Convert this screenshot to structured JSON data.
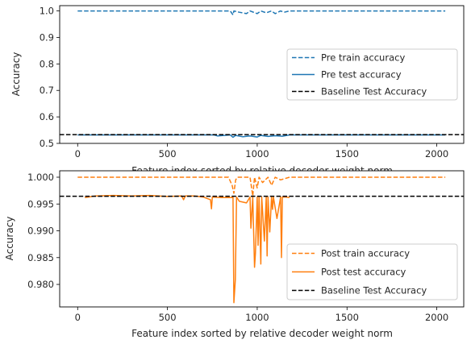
{
  "chart_data": [
    {
      "type": "line",
      "title": "",
      "xlabel": "Feature index sorted by relative decoder weight norm",
      "ylabel": "Accuracy",
      "xlim": [
        -100,
        2150
      ],
      "ylim": [
        0.5,
        1.02
      ],
      "xticks": [
        0,
        500,
        1000,
        1500,
        2000
      ],
      "yticks": [
        0.5,
        0.6,
        0.7,
        0.8,
        0.9,
        1.0
      ],
      "ytick_labels": [
        "0.5",
        "0.6",
        "0.7",
        "0.8",
        "0.9",
        "1.0"
      ],
      "grid": false,
      "legend_position": "center-right",
      "series": [
        {
          "name": "Pre train accuracy",
          "style": "dashed",
          "color": "#1f77b4",
          "x": [
            0,
            850,
            865,
            870,
            900,
            940,
            960,
            1000,
            1020,
            1050,
            1080,
            1100,
            1130,
            1150,
            1180,
            2047
          ],
          "y": [
            1.0,
            1.0,
            0.985,
            1.0,
            0.995,
            0.99,
            1.0,
            0.99,
            1.0,
            0.993,
            1.0,
            0.99,
            1.0,
            0.995,
            1.0,
            1.0
          ]
        },
        {
          "name": "Pre test accuracy",
          "style": "solid",
          "color": "#1f77b4",
          "x": [
            0,
            760,
            780,
            850,
            865,
            880,
            920,
            960,
            1000,
            1020,
            1060,
            1100,
            1140,
            1180,
            2047
          ],
          "y": [
            0.532,
            0.532,
            0.528,
            0.532,
            0.523,
            0.53,
            0.525,
            0.528,
            0.524,
            0.53,
            0.526,
            0.529,
            0.527,
            0.532,
            0.532
          ]
        },
        {
          "name": "Baseline Test Accuracy",
          "style": "dashed",
          "color": "#000000",
          "y": 0.533
        }
      ]
    },
    {
      "type": "line",
      "title": "",
      "xlabel": "Feature index sorted by relative decoder weight norm",
      "ylabel": "Accuracy",
      "xlim": [
        -100,
        2150
      ],
      "ylim": [
        0.9758,
        1.0012
      ],
      "xticks": [
        0,
        500,
        1000,
        1500,
        2000
      ],
      "yticks": [
        0.98,
        0.985,
        0.99,
        0.995,
        1.0
      ],
      "ytick_labels": [
        "0.980",
        "0.985",
        "0.990",
        "0.995",
        "1.000"
      ],
      "grid": false,
      "legend_position": "lower-right",
      "series": [
        {
          "name": "Post train accuracy",
          "style": "dashed",
          "color": "#ff7f0e",
          "x": [
            0,
            840,
            860,
            870,
            880,
            890,
            960,
            975,
            985,
            1000,
            1010,
            1030,
            1060,
            1080,
            1100,
            1130,
            1180,
            2047
          ],
          "y": [
            1.0,
            1.0,
            0.9985,
            0.997,
            0.9995,
            1.0,
            1.0,
            0.9965,
            1.0,
            0.998,
            1.0,
            0.999,
            1.0,
            0.9985,
            1.0,
            0.9995,
            1.0,
            1.0
          ]
        },
        {
          "name": "Post test accuracy",
          "style": "solid",
          "color": "#ff7f0e",
          "x": [
            40,
            100,
            200,
            300,
            400,
            500,
            580,
            590,
            600,
            650,
            700,
            740,
            745,
            750,
            800,
            850,
            865,
            870,
            878,
            885,
            900,
            940,
            960,
            965,
            975,
            985,
            990,
            1000,
            1005,
            1010,
            1020,
            1025,
            1040,
            1050,
            1055,
            1060,
            1070,
            1080,
            1085,
            1090,
            1110,
            1130,
            1135,
            1140,
            1160,
            1180
          ],
          "y": [
            0.9962,
            0.9965,
            0.9966,
            0.9965,
            0.9966,
            0.9964,
            0.9965,
            0.9958,
            0.9965,
            0.9965,
            0.9963,
            0.9958,
            0.9941,
            0.9963,
            0.9962,
            0.9962,
            0.9963,
            0.9766,
            0.9809,
            0.9963,
            0.9955,
            0.9952,
            0.9963,
            0.9905,
            0.9963,
            0.9832,
            0.9858,
            0.9963,
            0.9873,
            0.9963,
            0.9838,
            0.9963,
            0.9881,
            0.9963,
            0.9853,
            0.9963,
            0.9898,
            0.9963,
            0.994,
            0.9963,
            0.9923,
            0.9963,
            0.985,
            0.9963,
            0.9963,
            0.9962
          ]
        },
        {
          "name": "Baseline Test Accuracy",
          "style": "dashed",
          "color": "#000000",
          "y": 0.99645
        }
      ]
    }
  ]
}
